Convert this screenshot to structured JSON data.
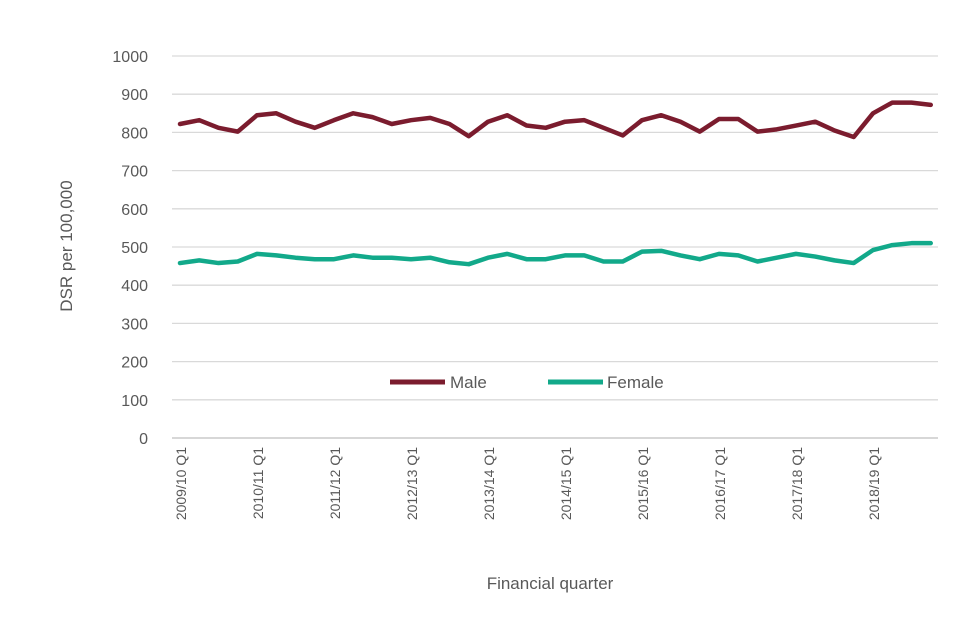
{
  "chart_data": {
    "type": "line",
    "title": "",
    "xlabel": "Financial quarter",
    "ylabel": "DSR per 100,000",
    "ylim": [
      0,
      1000
    ],
    "yticks": [
      0,
      100,
      200,
      300,
      400,
      500,
      600,
      700,
      800,
      900,
      1000
    ],
    "grid": true,
    "legend_position": "inside-bottom-center",
    "x_tick_labels": [
      "2009/10 Q1",
      "2010/11 Q1",
      "2011/12 Q1",
      "2012/13 Q1",
      "2013/14 Q1",
      "2014/15 Q1",
      "2015/16 Q1",
      "2016/17 Q1",
      "2017/18 Q1",
      "2018/19 Q1"
    ],
    "quarters_per_tick": 4,
    "series": [
      {
        "name": "Male",
        "color": "#7B1C2E",
        "values": [
          822,
          832,
          812,
          802,
          845,
          850,
          828,
          812,
          832,
          850,
          840,
          822,
          832,
          838,
          822,
          790,
          828,
          845,
          818,
          812,
          828,
          832,
          812,
          792,
          832,
          845,
          828,
          802,
          835,
          835,
          802,
          808,
          818,
          828,
          805,
          788,
          850,
          878,
          878,
          872
        ]
      },
      {
        "name": "Female",
        "color": "#12A98A",
        "values": [
          458,
          465,
          458,
          462,
          482,
          478,
          472,
          468,
          468,
          478,
          472,
          472,
          468,
          472,
          460,
          455,
          472,
          482,
          468,
          468,
          478,
          478,
          462,
          462,
          488,
          490,
          478,
          468,
          482,
          478,
          462,
          472,
          482,
          475,
          465,
          458,
          492,
          505,
          510,
          510
        ]
      }
    ]
  }
}
